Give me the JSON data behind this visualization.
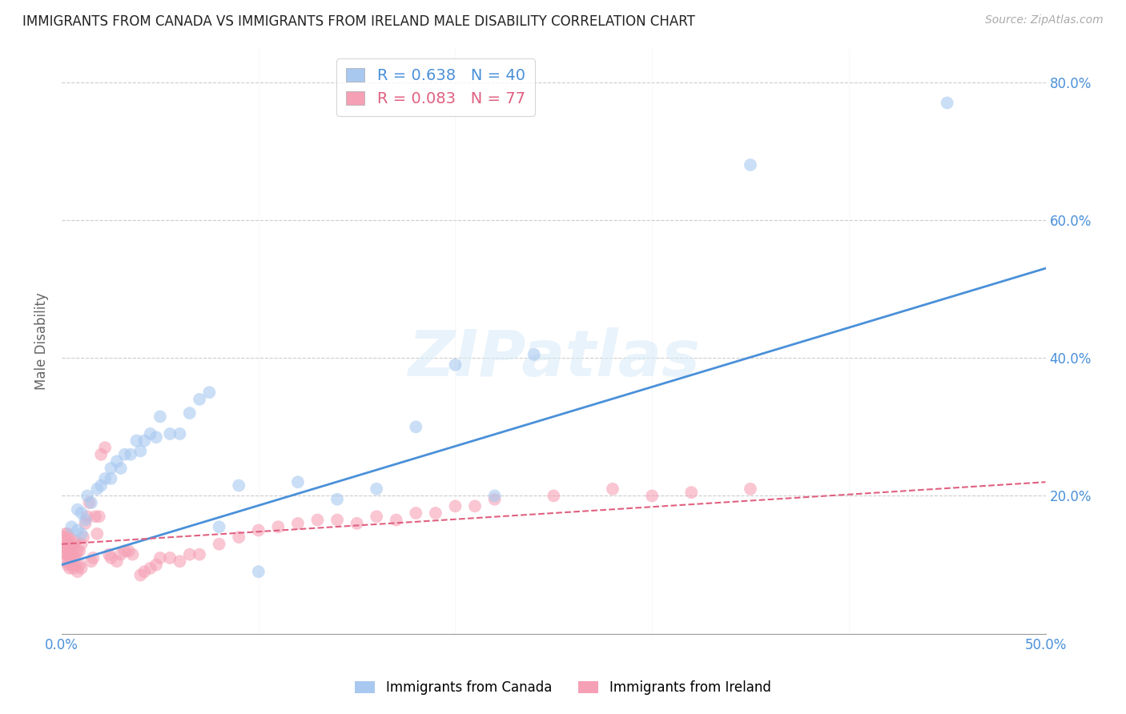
{
  "title": "IMMIGRANTS FROM CANADA VS IMMIGRANTS FROM IRELAND MALE DISABILITY CORRELATION CHART",
  "source": "Source: ZipAtlas.com",
  "ylabel_label": "Male Disability",
  "xlim": [
    0.0,
    0.5
  ],
  "ylim": [
    0.0,
    0.85
  ],
  "xticks": [
    0.0,
    0.1,
    0.2,
    0.3,
    0.4,
    0.5
  ],
  "xtick_labels_bottom": [
    "0.0%",
    "",
    "",
    "",
    "",
    "50.0%"
  ],
  "yticks": [
    0.2,
    0.4,
    0.6,
    0.8
  ],
  "ytick_labels": [
    "20.0%",
    "40.0%",
    "60.0%",
    "80.0%"
  ],
  "canada_R": 0.638,
  "canada_N": 40,
  "ireland_R": 0.083,
  "ireland_N": 77,
  "canada_color": "#a8c8f0",
  "ireland_color": "#f5a0b5",
  "canada_line_color": "#4a90d9",
  "ireland_line_color": "#e06080",
  "watermark": "ZIPatlas",
  "canada_x": [
    0.005,
    0.008,
    0.008,
    0.01,
    0.01,
    0.012,
    0.013,
    0.015,
    0.018,
    0.02,
    0.022,
    0.025,
    0.025,
    0.028,
    0.03,
    0.032,
    0.035,
    0.038,
    0.04,
    0.042,
    0.045,
    0.048,
    0.05,
    0.055,
    0.06,
    0.065,
    0.07,
    0.075,
    0.08,
    0.09,
    0.1,
    0.12,
    0.14,
    0.16,
    0.18,
    0.2,
    0.22,
    0.24,
    0.35,
    0.45
  ],
  "canada_y": [
    0.155,
    0.15,
    0.18,
    0.145,
    0.175,
    0.165,
    0.2,
    0.19,
    0.21,
    0.215,
    0.225,
    0.225,
    0.24,
    0.25,
    0.24,
    0.26,
    0.26,
    0.28,
    0.265,
    0.28,
    0.29,
    0.285,
    0.315,
    0.29,
    0.29,
    0.32,
    0.34,
    0.35,
    0.155,
    0.215,
    0.09,
    0.22,
    0.195,
    0.21,
    0.3,
    0.39,
    0.2,
    0.405,
    0.68,
    0.77
  ],
  "ireland_x": [
    0.001,
    0.001,
    0.001,
    0.002,
    0.002,
    0.002,
    0.002,
    0.003,
    0.003,
    0.003,
    0.003,
    0.004,
    0.004,
    0.004,
    0.004,
    0.005,
    0.005,
    0.005,
    0.006,
    0.006,
    0.006,
    0.007,
    0.007,
    0.007,
    0.008,
    0.008,
    0.009,
    0.009,
    0.01,
    0.01,
    0.011,
    0.012,
    0.013,
    0.014,
    0.015,
    0.016,
    0.017,
    0.018,
    0.019,
    0.02,
    0.022,
    0.024,
    0.025,
    0.028,
    0.03,
    0.032,
    0.034,
    0.036,
    0.04,
    0.042,
    0.045,
    0.048,
    0.05,
    0.055,
    0.06,
    0.065,
    0.07,
    0.08,
    0.09,
    0.1,
    0.11,
    0.12,
    0.13,
    0.14,
    0.15,
    0.16,
    0.17,
    0.18,
    0.19,
    0.2,
    0.21,
    0.22,
    0.25,
    0.28,
    0.3,
    0.32,
    0.35
  ],
  "ireland_y": [
    0.12,
    0.13,
    0.14,
    0.105,
    0.115,
    0.125,
    0.145,
    0.1,
    0.115,
    0.13,
    0.145,
    0.095,
    0.11,
    0.12,
    0.14,
    0.1,
    0.115,
    0.125,
    0.095,
    0.11,
    0.13,
    0.1,
    0.115,
    0.135,
    0.09,
    0.12,
    0.1,
    0.12,
    0.095,
    0.13,
    0.14,
    0.16,
    0.17,
    0.19,
    0.105,
    0.11,
    0.17,
    0.145,
    0.17,
    0.26,
    0.27,
    0.115,
    0.11,
    0.105,
    0.115,
    0.12,
    0.12,
    0.115,
    0.085,
    0.09,
    0.095,
    0.1,
    0.11,
    0.11,
    0.105,
    0.115,
    0.115,
    0.13,
    0.14,
    0.15,
    0.155,
    0.16,
    0.165,
    0.165,
    0.16,
    0.17,
    0.165,
    0.175,
    0.175,
    0.185,
    0.185,
    0.195,
    0.2,
    0.21,
    0.2,
    0.205,
    0.21
  ]
}
